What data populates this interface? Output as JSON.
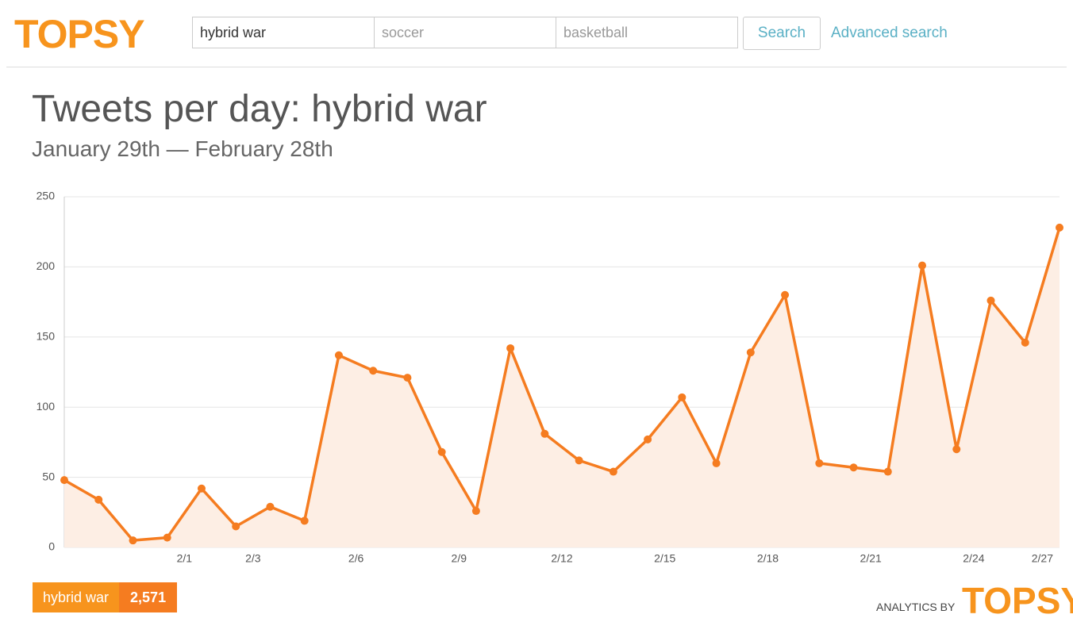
{
  "header": {
    "logo": "TOPSY",
    "inputs": [
      "hybrid war",
      "soccer",
      "basketball"
    ],
    "search_button": "Search",
    "advanced_link": "Advanced search"
  },
  "chart_data": {
    "type": "line",
    "title": "Tweets per day: hybrid war",
    "subtitle": "January 29th — February 28th",
    "categories": [
      null,
      null,
      null,
      "2/1",
      null,
      "2/3",
      null,
      null,
      "2/6",
      null,
      null,
      "2/9",
      null,
      null,
      "2/12",
      null,
      null,
      "2/15",
      null,
      null,
      "2/18",
      null,
      null,
      "2/21",
      null,
      null,
      "2/24",
      null,
      "2/27",
      null
    ],
    "series": [
      {
        "name": "hybrid war",
        "color": "#f57c20",
        "values": [
          48,
          34,
          5,
          7,
          42,
          15,
          29,
          19,
          137,
          126,
          121,
          68,
          26,
          142,
          81,
          62,
          54,
          77,
          107,
          60,
          139,
          180,
          60,
          57,
          54,
          201,
          70,
          176,
          146,
          228
        ]
      }
    ],
    "ylim": [
      0,
      250
    ],
    "yticks": [
      0,
      50,
      100,
      150,
      200,
      250
    ],
    "grid": true,
    "area_color": "#fdeee4"
  },
  "footer": {
    "total": "2,571",
    "analytics_by": "ANALYTICS BY",
    "logo": "TOPSY"
  }
}
